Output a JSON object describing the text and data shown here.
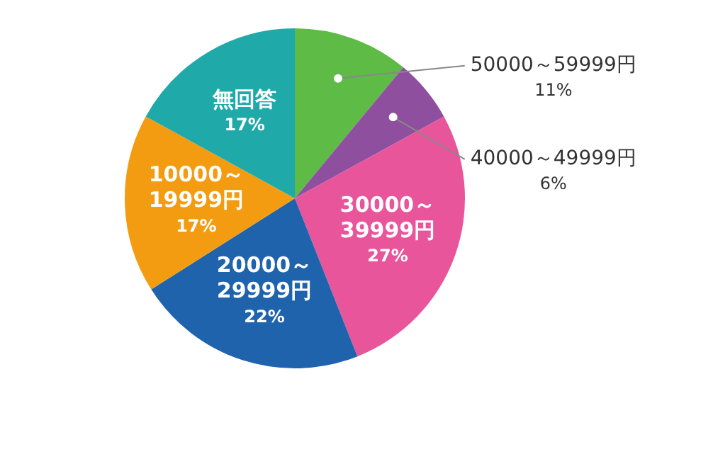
{
  "chart_data": {
    "type": "pie",
    "categories": [
      "50000～59999円",
      "40000～49999円",
      "30000～39999円",
      "20000～29999円",
      "10000～19999円",
      "無回答"
    ],
    "values": [
      11,
      6,
      27,
      22,
      17,
      17
    ],
    "value_labels": [
      "11%",
      "6%",
      "27%",
      "22%",
      "17%",
      "17%"
    ],
    "colors": [
      "#5dbb46",
      "#8e4f9e",
      "#e8559a",
      "#1f63ad",
      "#f39c12",
      "#1fa9a8"
    ],
    "legend": false
  }
}
